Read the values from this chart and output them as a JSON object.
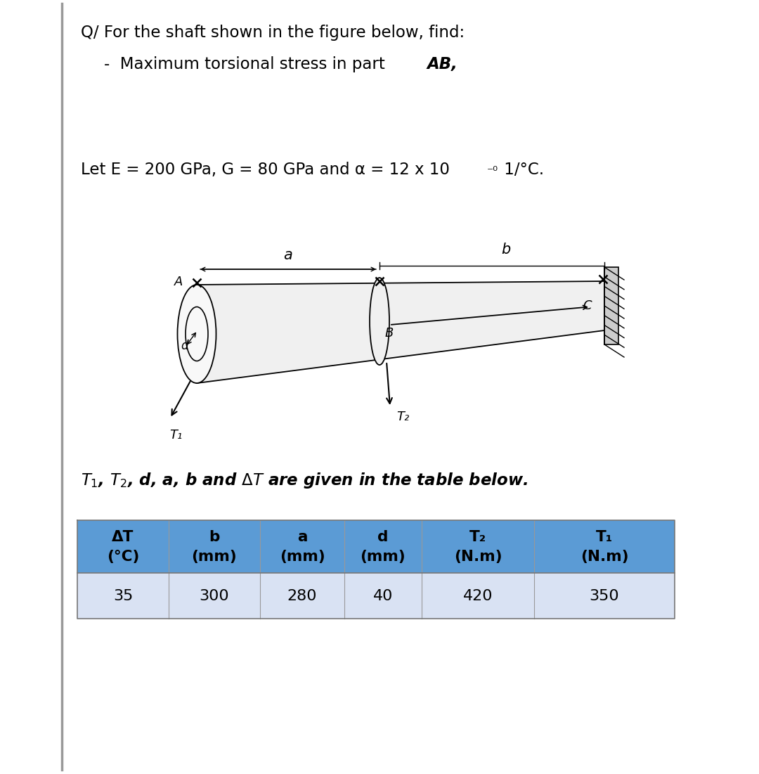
{
  "title_line1": "Q/ For the shaft shown in the figure below, find:",
  "bullet_text": "Maximum torsional stress in part ",
  "bullet_bold": "AB,",
  "params_prefix": "Let E = 200 GPa, G = 80 GPa and α = 12 x 10",
  "params_sup": "⁻⁰",
  "params_suffix": " 1/°C.",
  "table_note": "T₁, T₂, d, a, b and ΔT are given in the table below.",
  "headers_line1": [
    "ΔT",
    "b",
    "a",
    "d",
    "T₂",
    "T₁"
  ],
  "headers_line2": [
    "(°C)",
    "(mm)",
    "(mm)",
    "(mm)",
    "(N.m)",
    "(N.m)"
  ],
  "data_row": [
    "35",
    "300",
    "280",
    "40",
    "420",
    "350"
  ],
  "header_bg": "#5B9BD5",
  "data_bg": "#D9E2F3",
  "background": "#FFFFFF",
  "text_color": "#000000",
  "fig_width": 10.8,
  "fig_height": 11.01
}
